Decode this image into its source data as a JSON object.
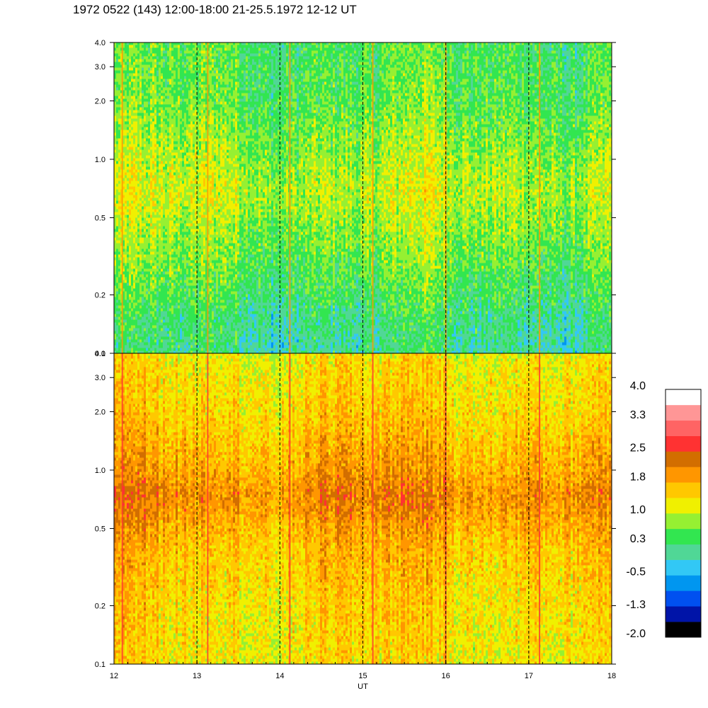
{
  "title": "1972 0522 (143) 12:00-18:00 21-25.5.1972  12-12 UT",
  "colors": {
    "palette": [
      "#000000",
      "#0014a8",
      "#0050f0",
      "#0096f0",
      "#32c8f5",
      "#50d796",
      "#32e650",
      "#96f032",
      "#f0f000",
      "#ffc800",
      "#ff9600",
      "#d26e00",
      "#ff3232",
      "#ff6464",
      "#ff9696",
      "#ffffff"
    ],
    "dashed_lines": "#000000",
    "frame": "#000000"
  },
  "chart_data": [
    {
      "type": "heatmap",
      "panel": "top",
      "title": "",
      "xlabel": "",
      "ylabel": "",
      "xlim": [
        12,
        18
      ],
      "ylim": [
        0.1,
        4.0
      ],
      "yscale": "log",
      "yticks": [
        "0.1",
        "0.2",
        "0.5",
        "1.0",
        "2.0",
        "3.0",
        "4.0"
      ],
      "yticks_values": [
        0.1,
        0.2,
        0.5,
        1.0,
        2.0,
        3.0,
        4.0
      ],
      "hour_markers": [
        13,
        14,
        15,
        16,
        17
      ],
      "spikes": [
        12.1,
        13.13,
        14.12,
        15.12,
        16.0,
        17.13
      ],
      "level_profile": [
        {
          "f": 0.1,
          "level": 0.1
        },
        {
          "f": 0.15,
          "level": 0.2
        },
        {
          "f": 0.2,
          "level": 0.4
        },
        {
          "f": 0.3,
          "level": 0.6
        },
        {
          "f": 0.5,
          "level": 0.85
        },
        {
          "f": 0.7,
          "level": 1.0
        },
        {
          "f": 1.0,
          "level": 0.85
        },
        {
          "f": 2.0,
          "level": 0.55
        },
        {
          "f": 4.0,
          "level": 0.45
        }
      ]
    },
    {
      "type": "heatmap",
      "panel": "bottom",
      "title": "",
      "xlabel": "UT",
      "ylabel": "",
      "xlim": [
        12,
        18
      ],
      "ylim": [
        0.1,
        4.0
      ],
      "yscale": "log",
      "xticks": [
        "12",
        "13",
        "14",
        "15",
        "16",
        "17",
        "18"
      ],
      "xticks_values": [
        12,
        13,
        14,
        15,
        16,
        17,
        18
      ],
      "yticks": [
        "0.1",
        "0.2",
        "0.5",
        "1.0",
        "2.0",
        "3.0",
        "4.0"
      ],
      "yticks_values": [
        0.1,
        0.2,
        0.5,
        1.0,
        2.0,
        3.0,
        4.0
      ],
      "hour_markers": [
        13,
        14,
        15,
        16,
        17
      ],
      "spikes": [
        12.1,
        13.13,
        14.12,
        15.12,
        16.0,
        17.13
      ],
      "level_profile": [
        {
          "f": 0.1,
          "level": 1.35
        },
        {
          "f": 0.2,
          "level": 1.45
        },
        {
          "f": 0.4,
          "level": 1.65
        },
        {
          "f": 0.6,
          "level": 1.95
        },
        {
          "f": 0.75,
          "level": 2.1
        },
        {
          "f": 1.0,
          "level": 1.85
        },
        {
          "f": 2.0,
          "level": 1.5
        },
        {
          "f": 4.0,
          "level": 1.3
        }
      ]
    }
  ],
  "colorbar": {
    "range": [
      -2.0,
      4.0
    ],
    "labels": [
      "4.0",
      "3.3",
      "2.5",
      "1.8",
      "1.0",
      "0.3",
      "-0.5",
      "-1.3",
      "-2.0"
    ],
    "label_values": [
      4.0,
      3.3,
      2.5,
      1.8,
      1.0,
      0.3,
      -0.5,
      -1.3,
      -2.0
    ]
  }
}
